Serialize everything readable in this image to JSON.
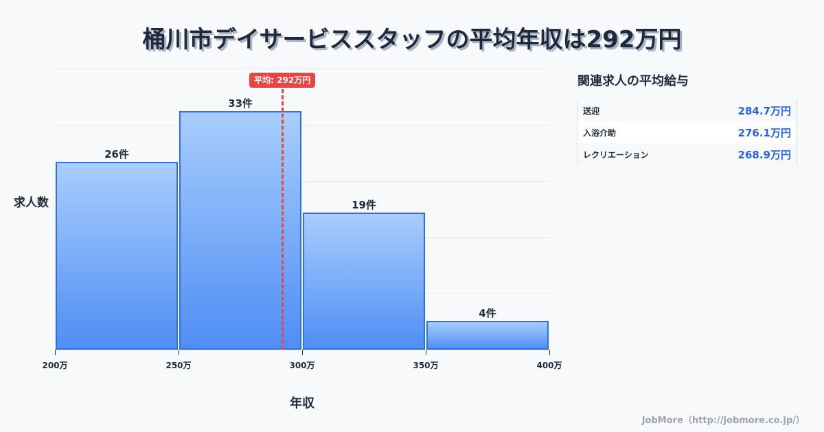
{
  "title": "桶川市デイサービススタッフの平均年収は292万円",
  "chart_data": {
    "type": "bar",
    "subtype": "histogram",
    "title": "桶川市デイサービススタッフの平均年収は292万円",
    "xlabel": "年収",
    "ylabel": "求人数",
    "categories": [
      "200万-250万",
      "250万-300万",
      "300万-350万",
      "350万-400万"
    ],
    "bin_edges": [
      200,
      250,
      300,
      350,
      400
    ],
    "x_tick_labels": [
      "200万",
      "250万",
      "300万",
      "350万",
      "400万"
    ],
    "values": [
      26,
      33,
      19,
      4
    ],
    "bar_labels": [
      "26件",
      "33件",
      "19件",
      "4件"
    ],
    "xlim": [
      200,
      400
    ],
    "ylim": [
      0,
      39
    ],
    "grid": true,
    "average": {
      "value": 292,
      "label": "平均: 292万円"
    },
    "colors": {
      "bar_top": "#a8cdfc",
      "bar_bottom": "#4f8ef5",
      "bar_border": "#2f6ee3",
      "average_line": "#e84545"
    }
  },
  "sidebar": {
    "title": "関連求人の平均給与",
    "items": [
      {
        "name": "送迎",
        "value": "284.7万円"
      },
      {
        "name": "入浴介助",
        "value": "276.1万円"
      },
      {
        "name": "レクリエーション",
        "value": "268.9万円"
      }
    ]
  },
  "footer": "JobMore（http://jobmore.co.jp/）"
}
